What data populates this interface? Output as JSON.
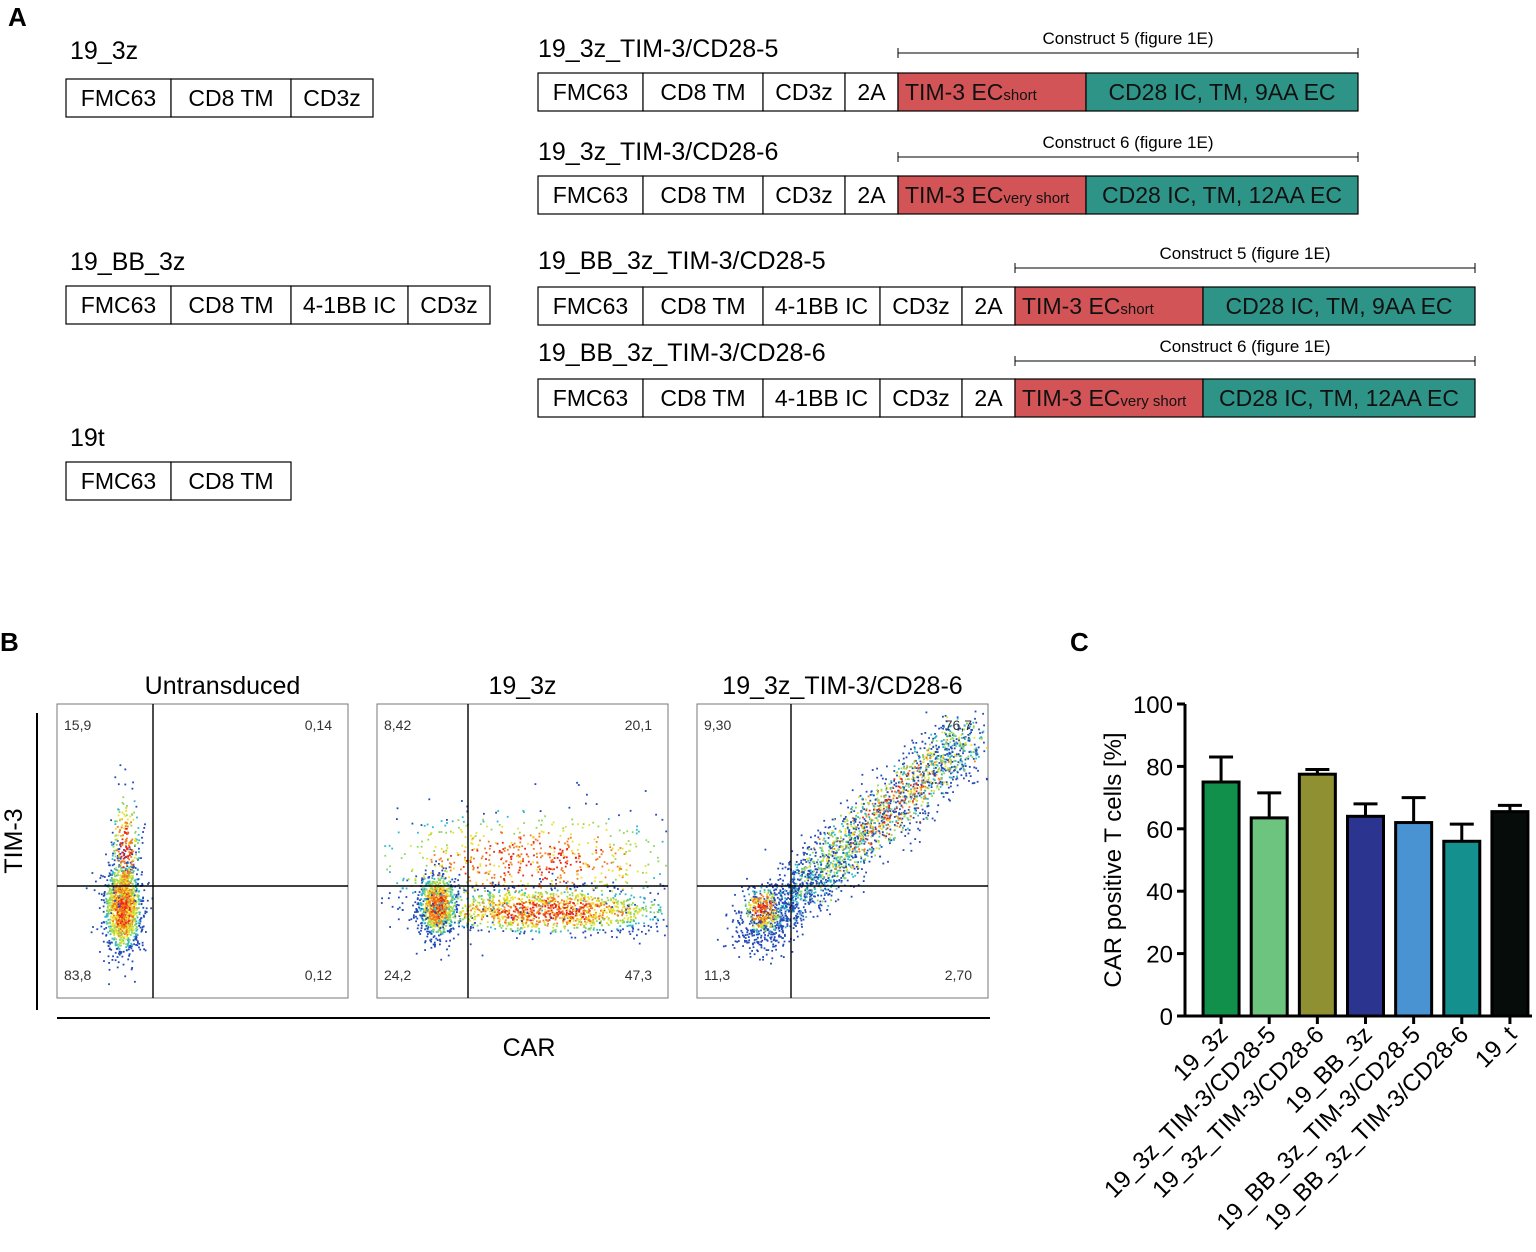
{
  "panel_letters": {
    "a": "A",
    "b": "B",
    "c": "C"
  },
  "colors": {
    "tim3": "#D35457",
    "cd28": "#2E9488",
    "bars": [
      "#10904A",
      "#6CC47F",
      "#8E9032",
      "#2B3590",
      "#4A93D2",
      "#14908E",
      "#050C0A"
    ]
  },
  "constructs": [
    {
      "name": "19_3z",
      "segments": [
        "FMC63",
        "CD8 TM",
        "CD3z"
      ]
    },
    {
      "name": "19_BB_3z",
      "segments": [
        "FMC63",
        "CD8 TM",
        "4-1BB IC",
        "CD3z"
      ]
    },
    {
      "name": "19t",
      "segments": [
        "FMC63",
        "CD8 TM"
      ]
    },
    {
      "name": "19_3z_TIM-3/CD28-5",
      "bracket_label": "Construct 5 (figure 1E)",
      "segments": [
        "FMC63",
        "CD8 TM",
        "CD3z",
        "2A"
      ],
      "tim3_main": "TIM-3 EC",
      "tim3_sub": "short",
      "cd28": "CD28 IC, TM, 9AA EC"
    },
    {
      "name": "19_3z_TIM-3/CD28-6",
      "bracket_label": "Construct 6 (figure 1E)",
      "segments": [
        "FMC63",
        "CD8 TM",
        "CD3z",
        "2A"
      ],
      "tim3_main": "TIM-3 EC",
      "tim3_sub": "very short",
      "cd28": "CD28 IC, TM, 12AA EC"
    },
    {
      "name": "19_BB_3z_TIM-3/CD28-5",
      "bracket_label": "Construct 5 (figure 1E)",
      "segments": [
        "FMC63",
        "CD8 TM",
        "4-1BB IC",
        "CD3z",
        "2A"
      ],
      "tim3_main": "TIM-3 EC",
      "tim3_sub": "short",
      "cd28": "CD28 IC, TM, 9AA EC"
    },
    {
      "name": "19_BB_3z_TIM-3/CD28-6",
      "bracket_label": "Construct 6 (figure 1E)",
      "segments": [
        "FMC63",
        "CD8 TM",
        "4-1BB IC",
        "CD3z",
        "2A"
      ],
      "tim3_main": "TIM-3 EC",
      "tim3_sub": "very short",
      "cd28": "CD28 IC, TM, 12AA EC"
    }
  ],
  "flow": {
    "x_axis_label": "CAR",
    "y_axis_label": "TIM-3",
    "plots": [
      {
        "title": "Untransduced",
        "quadrants": {
          "ul": "15,9",
          "ur": "0,14",
          "ll": "83,8",
          "lr": "0,12"
        }
      },
      {
        "title": "19_3z",
        "quadrants": {
          "ul": "8,42",
          "ur": "20,1",
          "ll": "24,2",
          "lr": "47,3"
        }
      },
      {
        "title": "19_3z_TIM-3/CD28-6",
        "quadrants": {
          "ul": "9,30",
          "ur": "76,7",
          "ll": "11,3",
          "lr": "2,70"
        }
      }
    ]
  },
  "chart_data": {
    "type": "bar",
    "title": "",
    "xlabel": "",
    "ylabel": "CAR positive T cells [%]",
    "ylim": [
      0,
      100
    ],
    "yticks": [
      "0",
      "20",
      "40",
      "60",
      "80",
      "100"
    ],
    "categories": [
      "19_3z",
      "19_3z_TIM-3/CD28-5",
      "19_3z_TIM-3/CD28-6",
      "19_BB_3z",
      "19_BB_3z_TIM-3/CD28-5",
      "19_BB_3z_TIM-3/CD28-6",
      "19_t"
    ],
    "values": [
      75,
      63.5,
      77.5,
      64,
      62,
      56,
      65.5
    ],
    "errors": [
      8,
      8,
      1.5,
      4,
      8,
      5.5,
      2
    ]
  }
}
